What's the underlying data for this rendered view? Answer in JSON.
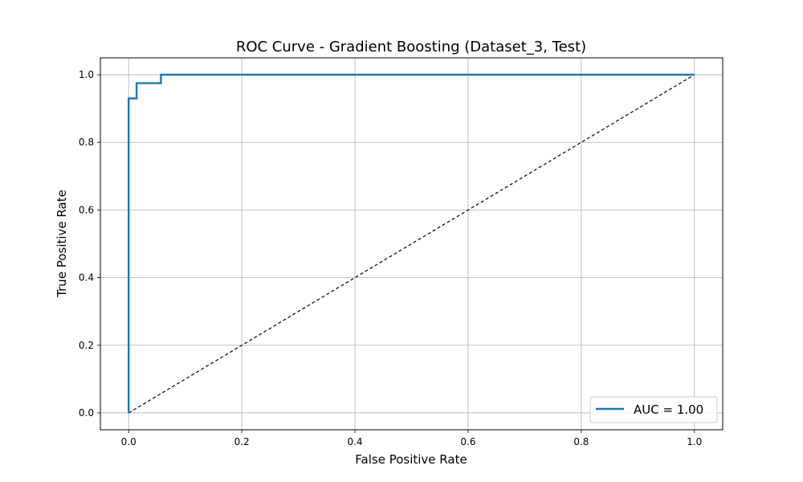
{
  "chart_data": {
    "type": "line",
    "title": "ROC Curve - Gradient Boosting (Dataset_3, Test)",
    "xlabel": "False Positive Rate",
    "ylabel": "True Positive Rate",
    "xlim": [
      -0.05,
      1.05
    ],
    "ylim": [
      -0.05,
      1.05
    ],
    "xticks": [
      0.0,
      0.2,
      0.4,
      0.6,
      0.8,
      1.0
    ],
    "yticks": [
      0.0,
      0.2,
      0.4,
      0.6,
      0.8,
      1.0
    ],
    "xtick_labels": [
      "0.0",
      "0.2",
      "0.4",
      "0.6",
      "0.8",
      "1.0"
    ],
    "ytick_labels": [
      "0.0",
      "0.2",
      "0.4",
      "0.6",
      "0.8",
      "1.0"
    ],
    "grid": true,
    "legend_position": "lower-right",
    "series": [
      {
        "name": "AUC = 1.00",
        "color": "#1f77b4",
        "style": "solid",
        "x": [
          0.0,
          0.0,
          0.0,
          0.014,
          0.014,
          0.057,
          0.057,
          1.0
        ],
        "y": [
          0.0,
          0.93,
          0.93,
          0.93,
          0.975,
          0.975,
          1.0,
          1.0
        ]
      },
      {
        "color": "#000000",
        "style": "dashed",
        "x": [
          0.0,
          1.0
        ],
        "y": [
          0.0,
          1.0
        ]
      }
    ]
  }
}
